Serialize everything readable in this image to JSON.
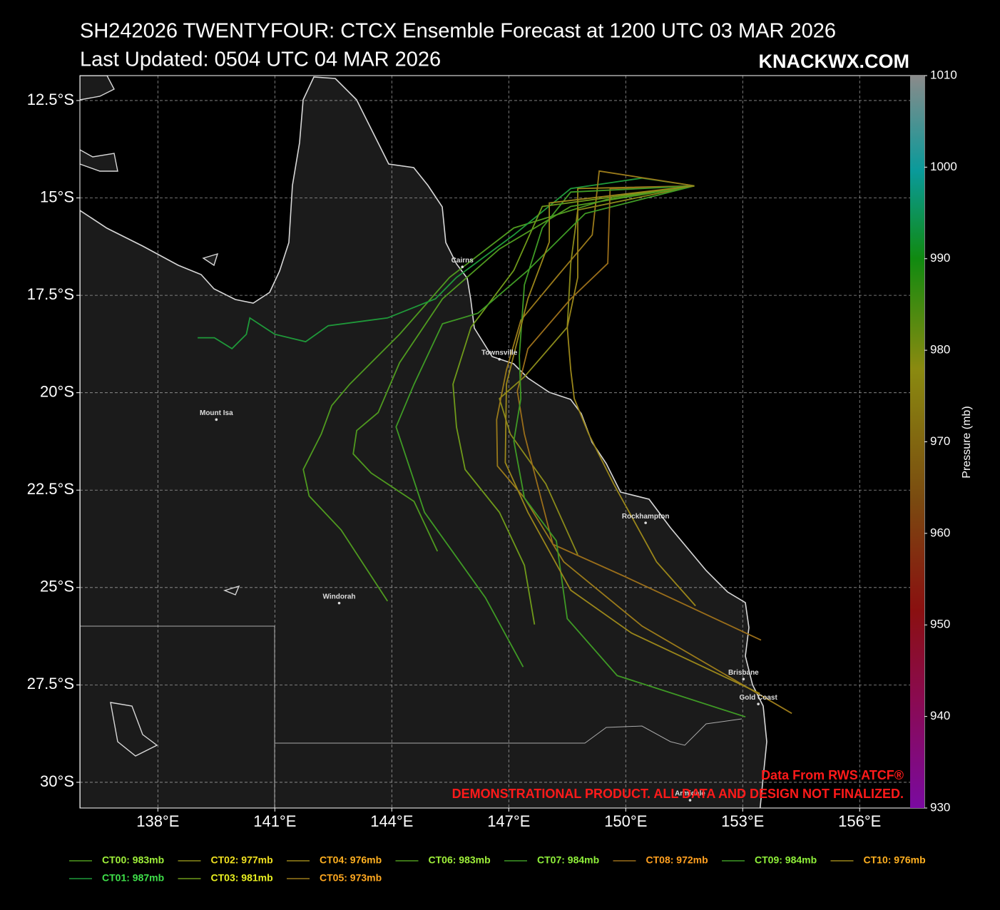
{
  "chart_data": {
    "type": "map",
    "title": "SH242026 TWENTYFOUR: CTCX Ensemble Forecast at 1200 UTC 03 MAR 2026",
    "subtitle": "Last Updated: 0504 UTC 04 MAR 2026",
    "brand": "KNACKWX.COM",
    "source": "Data From RWS ATCF®",
    "disclaimer": "DEMONSTRATIONAL PRODUCT. ALL DATA AND DESIGN NOT FINALIZED.",
    "xlim": [
      136.0,
      157.66
    ],
    "ylim": [
      -30.66,
      -11.86
    ],
    "xticks": [
      {
        "value": 138,
        "label": "138°E"
      },
      {
        "value": 141,
        "label": "141°E"
      },
      {
        "value": 144,
        "label": "144°E"
      },
      {
        "value": 147,
        "label": "147°E"
      },
      {
        "value": 150,
        "label": "150°E"
      },
      {
        "value": 153,
        "label": "153°E"
      },
      {
        "value": 156,
        "label": "156°E"
      }
    ],
    "yticks": [
      {
        "value": -12.5,
        "label": "12.5°S"
      },
      {
        "value": -15,
        "label": "15°S"
      },
      {
        "value": -17.5,
        "label": "17.5°S"
      },
      {
        "value": -20,
        "label": "20°S"
      },
      {
        "value": -22.5,
        "label": "22.5°S"
      },
      {
        "value": -25,
        "label": "25°S"
      },
      {
        "value": -27.5,
        "label": "27.5°S"
      },
      {
        "value": -30,
        "label": "30°S"
      }
    ],
    "grid": true,
    "colorbar": {
      "label": "Pressure (mb)",
      "lim": [
        930,
        1010
      ],
      "ticks": [
        930,
        940,
        950,
        960,
        970,
        980,
        990,
        1000,
        1010
      ]
    },
    "cities": [
      {
        "name": "Cairns",
        "lon": 145.81,
        "lat": -16.77
      },
      {
        "name": "Townsville",
        "lon": 146.76,
        "lat": -19.14
      },
      {
        "name": "Mount Isa",
        "lon": 139.5,
        "lat": -20.69
      },
      {
        "name": "Windorah",
        "lon": 142.65,
        "lat": -25.4
      },
      {
        "name": "Rockhampton",
        "lon": 150.51,
        "lat": -23.34
      },
      {
        "name": "Brisbane",
        "lon": 153.02,
        "lat": -27.35
      },
      {
        "name": "Gold Coast",
        "lon": 153.4,
        "lat": -27.99
      },
      {
        "name": "Armidale",
        "lon": 151.65,
        "lat": -30.46
      }
    ],
    "series": [
      {
        "name": "CT00: 983mb",
        "color": "#4f9a1f",
        "text_color": "#9ff03a",
        "lon": [
          151.76,
          149.51,
          147.13,
          145.48,
          144.2,
          142.92,
          142.46,
          142.19,
          141.73,
          141.88,
          142.7,
          143.89
        ],
        "lat": [
          -14.69,
          -15.04,
          -15.77,
          -17.04,
          -18.5,
          -19.78,
          -20.33,
          -21.06,
          -21.97,
          -22.65,
          -23.52,
          -25.35
        ]
      },
      {
        "name": "CT01: 987mb",
        "color": "#1f9a3a",
        "text_color": "#3fe04a",
        "lon": [
          151.76,
          150.42,
          148.59,
          147.13,
          145.66,
          145.12,
          143.89,
          142.37,
          141.79,
          141.0,
          140.36,
          140.27,
          139.9,
          139.45,
          139.02
        ],
        "lat": [
          -14.69,
          -14.49,
          -14.76,
          -15.95,
          -17.04,
          -17.59,
          -18.08,
          -18.28,
          -18.69,
          -18.5,
          -18.08,
          -18.5,
          -18.87,
          -18.59,
          -18.59
        ]
      },
      {
        "name": "CT02: 977mb",
        "color": "#8a8a1a",
        "text_color": "#f0e020",
        "lon": [
          151.76,
          148.77,
          148.59,
          148.5,
          147.4,
          146.76,
          147.04,
          147.95,
          148.77
        ],
        "lat": [
          -14.69,
          -15.31,
          -16.68,
          -18.32,
          -19.59,
          -20.15,
          -21.06,
          -22.34,
          -24.16
        ]
      },
      {
        "name": "CT03: 981mb",
        "color": "#6f9a1a",
        "text_color": "#e8f020",
        "lon": [
          151.76,
          147.86,
          147.13,
          146.03,
          145.57,
          145.66,
          145.88,
          146.76,
          147.4,
          147.66
        ],
        "lat": [
          -14.69,
          -15.22,
          -16.86,
          -18.32,
          -19.78,
          -20.88,
          -21.97,
          -23.07,
          -24.43,
          -25.95
        ]
      },
      {
        "name": "CT04: 976mb",
        "color": "#9a861a",
        "text_color": "#ffb020",
        "lon": [
          151.76,
          148.77,
          148.77,
          148.5,
          148.59,
          148.68,
          149.05,
          149.69,
          150.79,
          151.79
        ],
        "lat": [
          -14.69,
          -14.76,
          -17.04,
          -18.32,
          -19.42,
          -20.15,
          -21.06,
          -22.34,
          -24.34,
          -25.47
        ]
      },
      {
        "name": "CT05: 973mb",
        "color": "#9a7a1a",
        "text_color": "#ffa820",
        "lon": [
          151.76,
          149.32,
          149.14,
          148.22,
          147.31,
          146.94,
          146.69,
          146.71,
          147.4,
          148.41,
          150.42,
          154.26
        ],
        "lat": [
          -14.69,
          -14.31,
          -15.95,
          -17.04,
          -18.14,
          -19.42,
          -20.69,
          -21.88,
          -22.7,
          -24.34,
          -25.99,
          -28.23
        ]
      },
      {
        "name": "CT06: 983mb",
        "color": "#4f9a1f",
        "text_color": "#9ff03a",
        "lon": [
          151.76,
          148.59,
          146.76,
          145.3,
          144.2,
          143.65,
          143.1,
          143.01,
          143.47,
          144.57,
          145.17
        ],
        "lat": [
          -14.69,
          -15.22,
          -16.31,
          -17.59,
          -19.23,
          -20.51,
          -20.97,
          -21.57,
          -22.06,
          -22.79,
          -24.07
        ]
      },
      {
        "name": "CT07: 984mb",
        "color": "#3f9a25",
        "text_color": "#8ff03a",
        "lon": [
          151.76,
          148.96,
          147.49,
          146.21,
          145.3,
          144.57,
          144.11,
          144.84,
          146.4,
          147.37
        ],
        "lat": [
          -14.69,
          -15.4,
          -16.86,
          -17.96,
          -18.23,
          -19.78,
          -20.88,
          -23.07,
          -25.26,
          -27.04
        ]
      },
      {
        "name": "CT08: 972mb",
        "color": "#9a6e1a",
        "text_color": "#ffa020",
        "lon": [
          151.76,
          149.6,
          149.54,
          148.59,
          147.49,
          147.22,
          147.4,
          148.13,
          149.96,
          153.47
        ],
        "lat": [
          -14.69,
          -14.76,
          -16.68,
          -17.59,
          -18.87,
          -19.96,
          -21.06,
          -23.89,
          -24.71,
          -26.35
        ]
      },
      {
        "name": "CT09: 984mb",
        "color": "#3f9a25",
        "text_color": "#8ff03a",
        "lon": [
          151.76,
          148.59,
          147.86,
          147.4,
          147.27,
          147.31,
          147.13,
          147.4,
          148.22,
          148.5,
          149.78,
          153.07
        ],
        "lat": [
          -14.69,
          -14.85,
          -15.77,
          -17.23,
          -19.05,
          -20.15,
          -21.24,
          -22.7,
          -23.8,
          -25.8,
          -27.26,
          -28.32
        ]
      },
      {
        "name": "CT10: 976mb",
        "color": "#9a861a",
        "text_color": "#ffb020",
        "lon": [
          151.76,
          148.04,
          148.04,
          147.49,
          146.94,
          146.91,
          147.49,
          148.59,
          150.15,
          153.44
        ],
        "lat": [
          -14.69,
          -15.13,
          -16.13,
          -17.59,
          -19.78,
          -21.79,
          -23.07,
          -25.07,
          -26.17,
          -27.72
        ]
      }
    ]
  }
}
